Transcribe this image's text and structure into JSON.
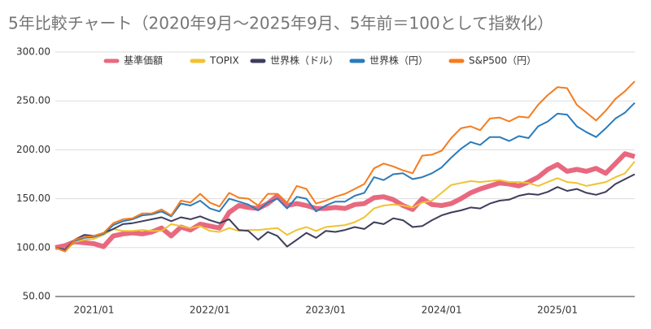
{
  "chart_data": {
    "type": "line",
    "title": "5年比較チャート（2020年9月〜2025年9月、5年前＝100として指数化）",
    "categories": [
      null,
      null,
      null,
      null,
      "2021/01",
      null,
      null,
      null,
      null,
      null,
      null,
      null,
      null,
      null,
      null,
      null,
      "2022/01",
      null,
      null,
      null,
      null,
      null,
      null,
      null,
      null,
      null,
      null,
      null,
      "2023/01",
      null,
      null,
      null,
      null,
      null,
      null,
      null,
      null,
      null,
      null,
      null,
      "2024/01",
      null,
      null,
      null,
      null,
      null,
      null,
      null,
      null,
      null,
      null,
      null,
      "2025/01",
      null,
      null,
      null,
      null,
      null,
      null,
      null,
      null
    ],
    "ylim": [
      50,
      300
    ],
    "yticks": [
      {
        "value": 50,
        "label": "50.00"
      },
      {
        "value": 100,
        "label": "100.00"
      },
      {
        "value": 150,
        "label": "150.00"
      },
      {
        "value": 200,
        "label": "200.00"
      },
      {
        "value": 250,
        "label": "250.00"
      },
      {
        "value": 300,
        "label": "300.00"
      }
    ],
    "grid": true,
    "legend": "top",
    "series": [
      {
        "name": "基準価額",
        "color": "#e8697f",
        "values": [
          100,
          102,
          106,
          105,
          104,
          101,
          112,
          114,
          115,
          114,
          116,
          120,
          112,
          121,
          118,
          124,
          122,
          120,
          136,
          143,
          141,
          140,
          145,
          153,
          143,
          145,
          143,
          140,
          140,
          141,
          140,
          144,
          145,
          151,
          152,
          149,
          143,
          139,
          150,
          144,
          143,
          145,
          150,
          156,
          160,
          163,
          166,
          165,
          163,
          167,
          172,
          180,
          185,
          178,
          180,
          178,
          181,
          176,
          186,
          196,
          193
        ]
      },
      {
        "name": "TOPIX",
        "color": "#f1c232",
        "values": [
          100,
          96,
          106,
          108,
          109,
          113,
          119,
          117,
          117,
          118,
          117,
          117,
          124,
          122,
          120,
          122,
          117,
          116,
          120,
          117,
          118,
          118,
          119,
          120,
          113,
          118,
          121,
          117,
          121,
          122,
          123,
          126,
          131,
          140,
          143,
          144,
          143,
          141,
          146,
          148,
          156,
          164,
          166,
          168,
          167,
          168,
          169,
          167,
          167,
          166,
          163,
          167,
          171,
          167,
          166,
          163,
          165,
          167,
          172,
          176,
          188
        ]
      },
      {
        "name": "世界株（ドル）",
        "color": "#3d3d5c",
        "values": [
          100,
          98,
          108,
          113,
          112,
          115,
          119,
          124,
          125,
          127,
          129,
          131,
          127,
          131,
          129,
          132,
          128,
          125,
          129,
          118,
          117,
          108,
          116,
          112,
          101,
          108,
          115,
          110,
          117,
          116,
          118,
          121,
          119,
          126,
          124,
          130,
          128,
          121,
          122,
          128,
          133,
          136,
          138,
          141,
          140,
          145,
          148,
          149,
          153,
          155,
          154,
          157,
          162,
          158,
          160,
          156,
          154,
          157,
          165,
          170,
          175
        ]
      },
      {
        "name": "世界株（円）",
        "color": "#2b7bb9",
        "values": [
          100,
          97,
          107,
          110,
          111,
          114,
          123,
          127,
          129,
          133,
          134,
          137,
          132,
          145,
          143,
          148,
          140,
          137,
          150,
          147,
          144,
          138,
          146,
          150,
          140,
          152,
          150,
          137,
          143,
          147,
          147,
          153,
          156,
          172,
          169,
          175,
          176,
          170,
          172,
          176,
          182,
          192,
          201,
          208,
          205,
          213,
          213,
          209,
          214,
          212,
          224,
          229,
          237,
          236,
          224,
          218,
          213,
          222,
          232,
          238,
          248
        ]
      },
      {
        "name": "S&P500（円）",
        "color": "#f57c1f",
        "values": [
          100,
          96,
          108,
          111,
          112,
          115,
          125,
          129,
          130,
          135,
          135,
          139,
          133,
          148,
          146,
          155,
          146,
          142,
          156,
          151,
          150,
          143,
          155,
          155,
          146,
          163,
          160,
          145,
          148,
          152,
          155,
          160,
          165,
          181,
          186,
          183,
          179,
          176,
          194,
          195,
          199,
          212,
          222,
          224,
          220,
          232,
          233,
          229,
          234,
          233,
          246,
          256,
          264,
          263,
          246,
          238,
          230,
          240,
          252,
          260,
          270
        ]
      }
    ]
  }
}
